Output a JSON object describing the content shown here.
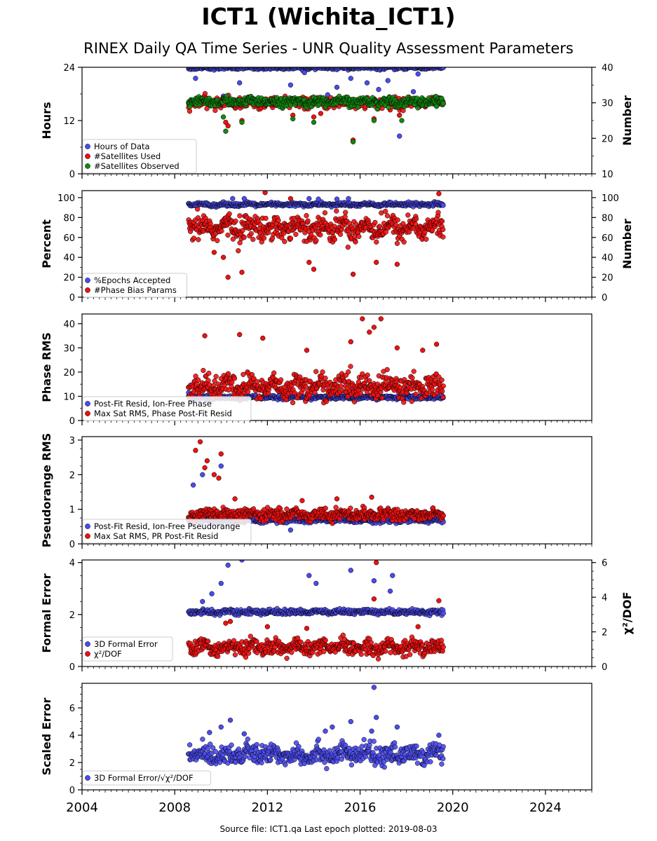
{
  "header": {
    "title": "ICT1 (Wichita_ICT1)",
    "subtitle": "RINEX Daily QA Time Series - UNR Quality Assessment Parameters"
  },
  "footer": {
    "text": "Source file: ICT1.qa Last epoch plotted: 2019-08-03"
  },
  "colors": {
    "blue": "#4b4bef",
    "red": "#ee1111",
    "green": "#118811",
    "edge": "#000000"
  },
  "chart_data": [
    {
      "type": "scatter",
      "ylabel": "Hours",
      "ylabel_right": "Number",
      "xlim": [
        2004,
        2026
      ],
      "ylim": [
        0,
        24
      ],
      "yticks": [
        0,
        12,
        24
      ],
      "ylim_right": [
        10,
        40
      ],
      "yticks_right": [
        10,
        20,
        30,
        40
      ],
      "legend": {
        "location": "lower-left",
        "entries": [
          "Hours of Data",
          "#Satellites Used",
          "#Satellites Observed"
        ]
      },
      "series": [
        {
          "name": "Hours of Data",
          "color": "blue",
          "axis": "left",
          "base": 23.9,
          "spread": 0.3,
          "outliers": [
            [
              2008.9,
              21.5
            ],
            [
              2010.1,
              17.5
            ],
            [
              2010.8,
              20.5
            ],
            [
              2012.1,
              16.5
            ],
            [
              2013.0,
              20.0
            ],
            [
              2013.6,
              22.8
            ],
            [
              2014.6,
              17.8
            ],
            [
              2015.0,
              19.5
            ],
            [
              2015.6,
              21.5
            ],
            [
              2016.3,
              20.5
            ],
            [
              2016.8,
              19.0
            ],
            [
              2017.2,
              21.0
            ],
            [
              2017.7,
              8.5
            ],
            [
              2018.3,
              18.5
            ],
            [
              2018.5,
              22.5
            ]
          ]
        },
        {
          "name": "#Satellites Used",
          "color": "red",
          "axis": "right",
          "base": 30.0,
          "spread": 1.2,
          "outliers": [
            [
              2010.2,
              24.5
            ],
            [
              2010.3,
              23.5
            ],
            [
              2010.9,
              25.0
            ],
            [
              2013.1,
              26.5
            ],
            [
              2014.0,
              26.0
            ],
            [
              2014.3,
              27.0
            ],
            [
              2015.7,
              19.5
            ],
            [
              2016.6,
              25.5
            ],
            [
              2017.7,
              26.5
            ],
            [
              2017.3,
              28.0
            ]
          ]
        },
        {
          "name": "#Satellites Observed",
          "color": "green",
          "axis": "right",
          "base": 30.3,
          "spread": 1.0,
          "outliers": [
            [
              2010.1,
              26.0
            ],
            [
              2010.2,
              22.0
            ],
            [
              2010.9,
              24.5
            ],
            [
              2013.1,
              25.5
            ],
            [
              2014.0,
              24.5
            ],
            [
              2015.7,
              19.0
            ],
            [
              2016.6,
              25.0
            ],
            [
              2017.8,
              25.0
            ],
            [
              2019.3,
              29.0
            ]
          ]
        }
      ]
    },
    {
      "type": "scatter",
      "ylabel": "Percent",
      "ylabel_right": "Number",
      "xlim": [
        2004,
        2026
      ],
      "ylim": [
        0,
        107
      ],
      "yticks": [
        0,
        20,
        40,
        60,
        80,
        100
      ],
      "ylim_right": [
        0,
        107
      ],
      "yticks_right": [
        0,
        20,
        40,
        60,
        80,
        100
      ],
      "legend": {
        "location": "lower-left",
        "entries": [
          "%Epochs Accepted",
          "#Phase Bias Params"
        ]
      },
      "series": [
        {
          "name": "%Epochs Accepted",
          "color": "blue",
          "axis": "left",
          "base": 93.0,
          "spread": 1.5,
          "outliers": [
            [
              2010.5,
              99.0
            ],
            [
              2011.0,
              99.0
            ],
            [
              2013.8,
              99.0
            ],
            [
              2014.2,
              98.5
            ],
            [
              2015.0,
              98.5
            ],
            [
              2015.5,
              99.0
            ]
          ]
        },
        {
          "name": "#Phase Bias Params",
          "color": "red",
          "axis": "right",
          "base": 70.0,
          "spread": 10.0,
          "outliers": [
            [
              2009.7,
              45.0
            ],
            [
              2010.1,
              40.0
            ],
            [
              2010.3,
              20.0
            ],
            [
              2010.9,
              25.0
            ],
            [
              2011.9,
              105.0
            ],
            [
              2013.0,
              99.0
            ],
            [
              2013.8,
              35.0
            ],
            [
              2014.0,
              28.0
            ],
            [
              2015.7,
              23.0
            ],
            [
              2016.7,
              35.0
            ],
            [
              2017.6,
              33.0
            ],
            [
              2019.4,
              104.0
            ]
          ]
        }
      ]
    },
    {
      "type": "scatter",
      "ylabel": "Phase RMS",
      "xlim": [
        2004,
        2026
      ],
      "ylim": [
        0,
        44
      ],
      "yticks": [
        0,
        10,
        20,
        30,
        40
      ],
      "legend": {
        "location": "lower-left",
        "entries": [
          "Post-Fit Resid, Ion-Free Phase",
          "Max Sat RMS, Phase Post-Fit Resid"
        ]
      },
      "series": [
        {
          "name": "Post-Fit Resid, Ion-Free Phase",
          "color": "blue",
          "axis": "left",
          "base": 9.5,
          "spread": 0.6,
          "outliers": [
            [
              2008.6,
              11.5
            ],
            [
              2019.5,
              11.0
            ]
          ]
        },
        {
          "name": "Max Sat RMS, Phase Post-Fit Resid",
          "color": "red",
          "axis": "left",
          "base": 14.0,
          "spread": 4.0,
          "outliers": [
            [
              2009.3,
              35.0
            ],
            [
              2010.8,
              35.5
            ],
            [
              2011.8,
              34.0
            ],
            [
              2013.7,
              29.0
            ],
            [
              2015.6,
              32.5
            ],
            [
              2016.1,
              42.0
            ],
            [
              2016.4,
              36.5
            ],
            [
              2016.6,
              38.5
            ],
            [
              2016.9,
              42.0
            ],
            [
              2017.6,
              30.0
            ],
            [
              2018.7,
              29.0
            ],
            [
              2019.3,
              31.5
            ]
          ]
        }
      ]
    },
    {
      "type": "scatter",
      "ylabel": "Pseudorange RMS",
      "xlim": [
        2004,
        2026
      ],
      "ylim": [
        0,
        3.1
      ],
      "yticks": [
        0,
        1,
        2,
        3
      ],
      "legend": {
        "location": "lower-left",
        "entries": [
          "Post-Fit Resid, Ion-Free Pseudorange",
          "Max Sat RMS, PR Post-Fit Resid"
        ]
      },
      "series": [
        {
          "name": "Post-Fit Resid, Ion-Free Pseudorange",
          "color": "blue",
          "axis": "left",
          "base": 0.68,
          "spread": 0.06,
          "outliers": [
            [
              2008.8,
              1.7
            ],
            [
              2009.2,
              2.0
            ],
            [
              2010.0,
              2.25
            ],
            [
              2013.0,
              0.4
            ]
          ]
        },
        {
          "name": "Max Sat RMS, PR Post-Fit Resid",
          "color": "red",
          "axis": "left",
          "base": 0.85,
          "spread": 0.13,
          "outliers": [
            [
              2008.9,
              2.7
            ],
            [
              2009.1,
              2.95
            ],
            [
              2009.4,
              2.4
            ],
            [
              2009.7,
              2.0
            ],
            [
              2010.0,
              2.6
            ],
            [
              2009.9,
              1.9
            ],
            [
              2009.3,
              2.2
            ],
            [
              2010.6,
              1.3
            ],
            [
              2012.5,
              1.05
            ],
            [
              2013.5,
              1.25
            ],
            [
              2015.0,
              1.3
            ],
            [
              2016.5,
              1.35
            ]
          ]
        }
      ]
    },
    {
      "type": "scatter",
      "ylabel": "Formal Error",
      "ylabel_right": "χ²/DOF",
      "xlim": [
        2004,
        2026
      ],
      "ylim": [
        0,
        4.1
      ],
      "yticks": [
        0,
        2,
        4
      ],
      "ylim_right": [
        0,
        6.15
      ],
      "yticks_right": [
        0,
        2,
        4,
        6
      ],
      "legend": {
        "location": "lower-left",
        "entries": [
          "3D Formal Error",
          "χ²/DOF"
        ]
      },
      "series": [
        {
          "name": "3D Formal Error",
          "color": "blue",
          "axis": "left",
          "base": 2.1,
          "spread": 0.08,
          "outliers": [
            [
              2009.2,
              2.5
            ],
            [
              2009.6,
              2.8
            ],
            [
              2010.0,
              3.2
            ],
            [
              2010.3,
              3.9
            ],
            [
              2010.9,
              4.1
            ],
            [
              2013.8,
              3.5
            ],
            [
              2014.1,
              3.2
            ],
            [
              2015.6,
              3.7
            ],
            [
              2016.6,
              3.3
            ],
            [
              2017.4,
              3.5
            ],
            [
              2017.3,
              2.9
            ]
          ]
        },
        {
          "name": "χ²/DOF",
          "color": "red",
          "axis": "right",
          "base": 1.1,
          "spread": 0.35,
          "outliers": [
            [
              2010.2,
              2.5
            ],
            [
              2010.4,
              2.6
            ],
            [
              2012.0,
              2.3
            ],
            [
              2013.7,
              2.2
            ],
            [
              2016.6,
              3.9
            ],
            [
              2016.7,
              6.0
            ],
            [
              2018.5,
              2.3
            ],
            [
              2019.4,
              3.8
            ]
          ]
        }
      ]
    },
    {
      "type": "scatter",
      "ylabel": "Scaled Error",
      "xlim": [
        2004,
        2026
      ],
      "xticks": [
        2004,
        2008,
        2012,
        2016,
        2020,
        2024
      ],
      "ylim": [
        0,
        7.8
      ],
      "yticks": [
        0,
        2,
        4,
        6
      ],
      "legend": {
        "location": "lower-left",
        "entries": [
          "3D Formal Error/√χ²/DOF"
        ]
      },
      "series": [
        {
          "name": "3D Formal Error/√χ²/DOF",
          "color": "blue",
          "axis": "left",
          "base": 2.6,
          "spread": 0.6,
          "outliers": [
            [
              2009.5,
              4.2
            ],
            [
              2010.0,
              4.6
            ],
            [
              2010.4,
              5.1
            ],
            [
              2011.0,
              4.1
            ],
            [
              2014.5,
              4.3
            ],
            [
              2014.8,
              4.6
            ],
            [
              2015.6,
              5.0
            ],
            [
              2016.5,
              4.3
            ],
            [
              2016.6,
              7.5
            ],
            [
              2016.7,
              5.3
            ],
            [
              2017.6,
              4.6
            ],
            [
              2019.4,
              4.0
            ]
          ]
        }
      ]
    }
  ]
}
